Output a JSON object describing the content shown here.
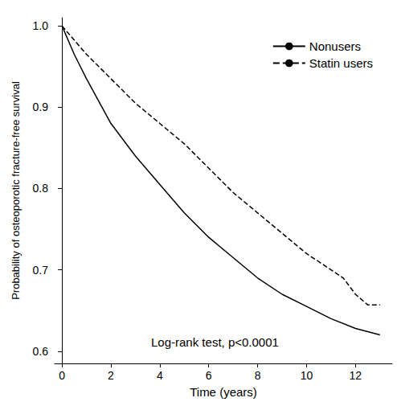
{
  "chart_data": {
    "type": "line",
    "xlabel": "Time (years)",
    "ylabel": "Probability of osteoporotic fracture-free survival",
    "annotation": "Log-rank test, p<0.0001",
    "xlim": [
      -0.3,
      13.5
    ],
    "xticks": [
      0,
      2,
      4,
      6,
      8,
      10,
      12
    ],
    "ylim": [
      0.585,
      1.01
    ],
    "yticks": [
      0.6,
      0.7,
      0.8,
      0.9,
      {
        "value": 1,
        "label": "1.0"
      }
    ],
    "grid": false,
    "legend": "upper right",
    "series": [
      {
        "name": "Nonusers",
        "color": "#000000",
        "line_style": "solid",
        "x": [
          0,
          0.5,
          1,
          2,
          3,
          4,
          5,
          6,
          7,
          8,
          9,
          10,
          11,
          12,
          13
        ],
        "values": [
          1.0,
          0.965,
          0.935,
          0.88,
          0.84,
          0.805,
          0.77,
          0.74,
          0.715,
          0.69,
          0.67,
          0.655,
          0.64,
          0.628,
          0.62
        ]
      },
      {
        "name": "Statin users",
        "color": "#000000",
        "line_style": "dashed",
        "x": [
          0,
          1,
          2,
          3,
          4,
          5,
          6,
          7,
          8,
          9,
          10,
          11,
          11.5,
          12,
          12.5,
          13
        ],
        "values": [
          1.0,
          0.965,
          0.935,
          0.905,
          0.88,
          0.855,
          0.825,
          0.795,
          0.77,
          0.745,
          0.72,
          0.7,
          0.69,
          0.67,
          0.657,
          0.657
        ]
      }
    ]
  }
}
